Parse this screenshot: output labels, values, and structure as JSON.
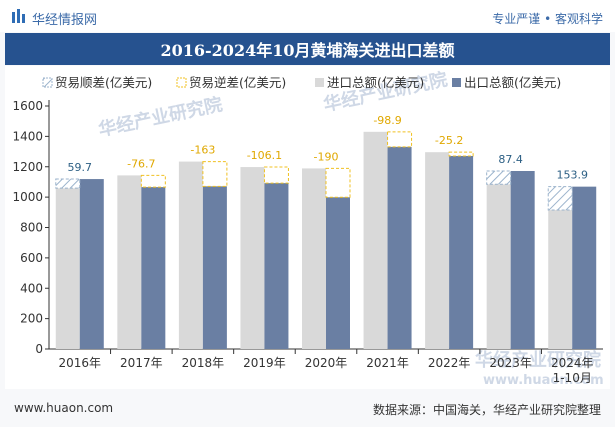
{
  "header": {
    "brand": "华经情报网",
    "tagline": "专业严谨 • 客观科学"
  },
  "footer": {
    "website": "www.huaon.com",
    "source": "数据来源：中国海关，华经产业研究院整理"
  },
  "watermark": {
    "text": "华经产业研究院",
    "url": "www.huaon.com"
  },
  "colors": {
    "title_bg": "#26528f",
    "import": "#d9d9d9",
    "export": "#6a7fa3",
    "surplus_label": "#2c5f84",
    "deficit_label": "#e0a800",
    "surplus_hatch": "#9bb3cc",
    "deficit_border": "#f0c020"
  },
  "chart_data": {
    "type": "bar",
    "title": "2016-2024年10月黄埔海关进出口差额",
    "categories": [
      "2016年",
      "2017年",
      "2018年",
      "2019年",
      "2020年",
      "2021年",
      "2022年",
      "2023年",
      "2024年\n1-10月"
    ],
    "series": [
      {
        "name": "进口总额(亿美元)",
        "values": [
          1059,
          1143,
          1234,
          1198,
          1189,
          1430,
          1296,
          1085,
          915
        ]
      },
      {
        "name": "出口总额(亿美元)",
        "values": [
          1119,
          1066,
          1071,
          1092,
          999,
          1331,
          1271,
          1172,
          1069
        ]
      }
    ],
    "balance": {
      "surplus_name": "贸易顺差(亿美元)",
      "deficit_name": "贸易逆差(亿美元)",
      "values": [
        59.7,
        -76.7,
        -163,
        -106.1,
        -190,
        -98.9,
        -25.2,
        87.4,
        153.9
      ],
      "labels": [
        "59.7",
        "-76.7",
        "-163",
        "-106.1",
        "-190",
        "-98.9",
        "-25.2",
        "87.4",
        "153.9"
      ]
    },
    "ylim": [
      0,
      1600
    ],
    "yticks": [
      "0",
      "200",
      "400",
      "600",
      "800",
      "1000",
      "1200",
      "1400",
      "1600"
    ],
    "xlabel": "",
    "ylabel": "",
    "legend_position": "top",
    "grid": false
  }
}
